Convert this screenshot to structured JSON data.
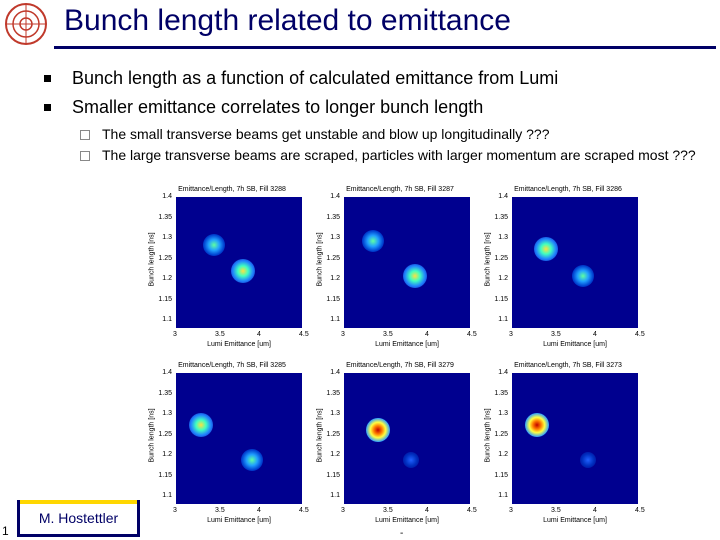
{
  "slide": {
    "title": "Bunch length related to emittance",
    "bullets": [
      "Bunch length as a function of calculated emittance from Lumi",
      "Smaller emittance correlates to longer bunch length"
    ],
    "sub_bullets": [
      "The small transverse beams get unstable and blow up longitudinally ???",
      "The large transverse beams are scraped, particles with larger momentum are scraped most ???"
    ],
    "author": "M. Hostettler",
    "page_number": "1",
    "footer_mark": "-",
    "accent_color": "#000066",
    "author_bar_color": "#ffd700"
  },
  "plot_common": {
    "ylabel": "Bunch length [ns]",
    "xlabel": "Lumi Emittance [um]",
    "yticks": [
      "1.4",
      "1.35",
      "1.3",
      "1.25",
      "1.2",
      "1.15",
      "1.1"
    ],
    "xticks": [
      "3",
      "3.5",
      "4",
      "4.5"
    ],
    "colormap_low": "#00008f"
  },
  "chart_data": [
    {
      "type": "heatmap",
      "title": "Emittance/Length, 7h SB, Fill 3288",
      "xlabel": "Lumi Emittance [um]",
      "ylabel": "Bunch length [ns]",
      "xlim": [
        3,
        4.5
      ],
      "ylim": [
        1.1,
        1.4
      ],
      "clusters": [
        {
          "x": 3.45,
          "y": 1.29,
          "intensity": "medium"
        },
        {
          "x": 3.8,
          "y": 1.23,
          "intensity": "high"
        }
      ]
    },
    {
      "type": "heatmap",
      "title": "Emittance/Length, 7h SB, Fill 3287",
      "xlabel": "Lumi Emittance [um]",
      "ylabel": "Bunch length [ns]",
      "xlim": [
        3,
        4.5
      ],
      "ylim": [
        1.1,
        1.4
      ],
      "clusters": [
        {
          "x": 3.35,
          "y": 1.3,
          "intensity": "medium"
        },
        {
          "x": 3.85,
          "y": 1.22,
          "intensity": "high"
        }
      ]
    },
    {
      "type": "heatmap",
      "title": "Emittance/Length, 7h SB, Fill 3286",
      "xlabel": "Lumi Emittance [um]",
      "ylabel": "Bunch length [ns]",
      "xlim": [
        3,
        4.5
      ],
      "ylim": [
        1.1,
        1.4
      ],
      "clusters": [
        {
          "x": 3.4,
          "y": 1.28,
          "intensity": "high"
        },
        {
          "x": 3.85,
          "y": 1.22,
          "intensity": "medium"
        }
      ]
    },
    {
      "type": "heatmap",
      "title": "Emittance/Length, 7h SB, Fill 3285",
      "xlabel": "Lumi Emittance [um]",
      "ylabel": "Bunch length [ns]",
      "xlim": [
        3,
        4.5
      ],
      "ylim": [
        1.1,
        1.4
      ],
      "clusters": [
        {
          "x": 3.3,
          "y": 1.28,
          "intensity": "high"
        },
        {
          "x": 3.9,
          "y": 1.2,
          "intensity": "medium"
        }
      ]
    },
    {
      "type": "heatmap",
      "title": "Emittance/Length, 7h SB, Fill 3279",
      "xlabel": "Lumi Emittance [um]",
      "ylabel": "Bunch length [ns]",
      "xlim": [
        3,
        4.5
      ],
      "ylim": [
        1.1,
        1.4
      ],
      "clusters": [
        {
          "x": 3.4,
          "y": 1.27,
          "intensity": "peak"
        },
        {
          "x": 3.8,
          "y": 1.2,
          "intensity": "low"
        }
      ]
    },
    {
      "type": "heatmap",
      "title": "Emittance/Length, 7h SB, Fill 3273",
      "xlabel": "Lumi Emittance [um]",
      "ylabel": "Bunch length [ns]",
      "xlim": [
        3,
        4.5
      ],
      "ylim": [
        1.1,
        1.4
      ],
      "clusters": [
        {
          "x": 3.3,
          "y": 1.28,
          "intensity": "peak"
        },
        {
          "x": 3.9,
          "y": 1.2,
          "intensity": "low"
        }
      ]
    }
  ]
}
